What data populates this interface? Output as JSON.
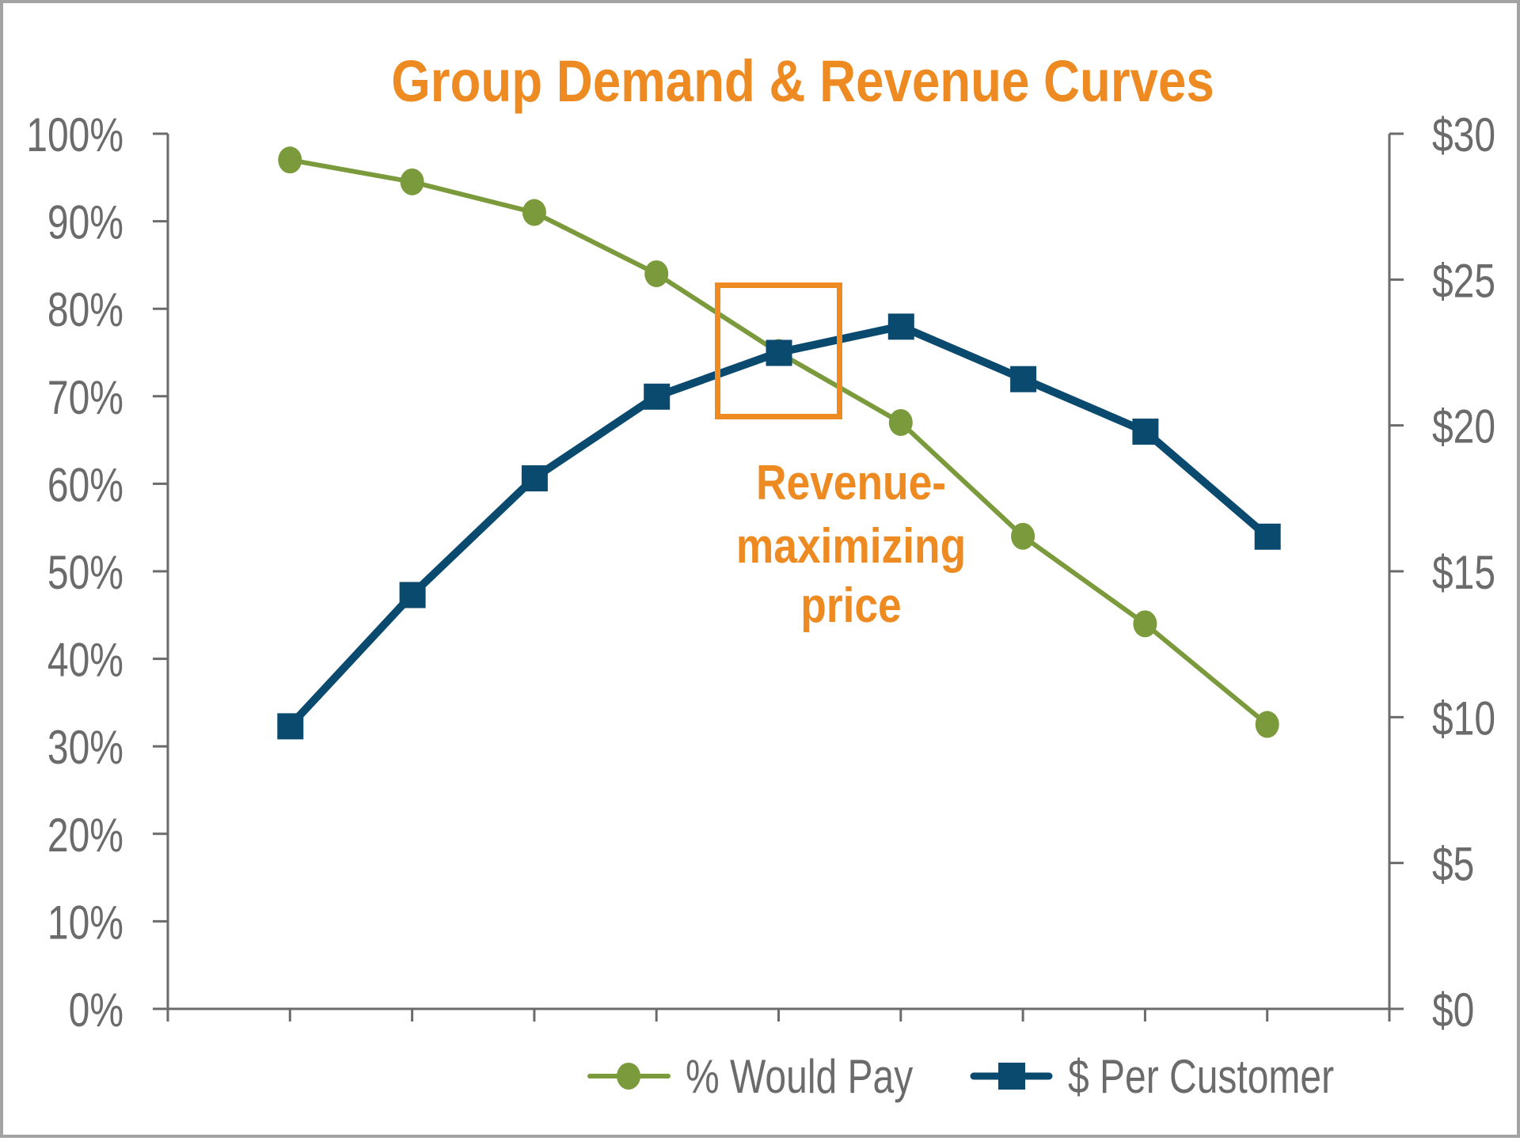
{
  "chart": {
    "title": "Group Demand & Revenue Curves",
    "annotation": {
      "lines": [
        "Revenue-",
        "maximizing",
        "price"
      ],
      "category_index": 4
    },
    "legend": {
      "items": [
        {
          "label": "% Would Pay",
          "marker": "circle-marker-icon"
        },
        {
          "label": "$ Per Customer",
          "marker": "square-marker-icon"
        }
      ]
    },
    "left_axis": {
      "ticks": [
        "0%",
        "10%",
        "20%",
        "30%",
        "40%",
        "50%",
        "60%",
        "70%",
        "80%",
        "90%",
        "100%"
      ]
    },
    "right_axis": {
      "ticks": [
        "$0",
        "$5",
        "$10",
        "$15",
        "$20",
        "$25",
        "$30"
      ]
    },
    "colors": {
      "accent_orange": "#ED8B22",
      "series_green": "#7A9A3C",
      "series_blue": "#0B4A6F",
      "axis_gray": "#6B6B6B",
      "border_gray": "#A3A3A3"
    }
  },
  "chart_data": {
    "type": "line",
    "title": "Group Demand & Revenue Curves",
    "xlabel": "",
    "ylabel": "",
    "y2label": "",
    "categories": [
      "",
      "",
      "",
      "",
      "",
      "",
      "",
      "",
      ""
    ],
    "series": [
      {
        "name": "% Would Pay",
        "axis": "left",
        "marker": "circle",
        "color": "#7A9A3C",
        "values": [
          0.97,
          0.945,
          0.91,
          0.84,
          0.75,
          0.67,
          0.54,
          0.44,
          0.325
        ]
      },
      {
        "name": "$ Per Customer",
        "axis": "right",
        "marker": "square",
        "color": "#0B4A6F",
        "values": [
          9.7,
          14.2,
          18.2,
          21.0,
          22.5,
          23.4,
          21.6,
          19.8,
          16.2
        ]
      }
    ],
    "ylim": [
      0,
      1
    ],
    "y2lim": [
      0,
      30
    ],
    "yticks": [
      "0%",
      "10%",
      "20%",
      "30%",
      "40%",
      "50%",
      "60%",
      "70%",
      "80%",
      "90%",
      "100%"
    ],
    "y2ticks": [
      "$0",
      "$5",
      "$10",
      "$15",
      "$20",
      "$25",
      "$30"
    ],
    "grid": false,
    "legend_position": "bottom-right",
    "annotations": [
      {
        "text": "Revenue-maximizing price",
        "category_index": 4,
        "shape": "box"
      }
    ]
  }
}
